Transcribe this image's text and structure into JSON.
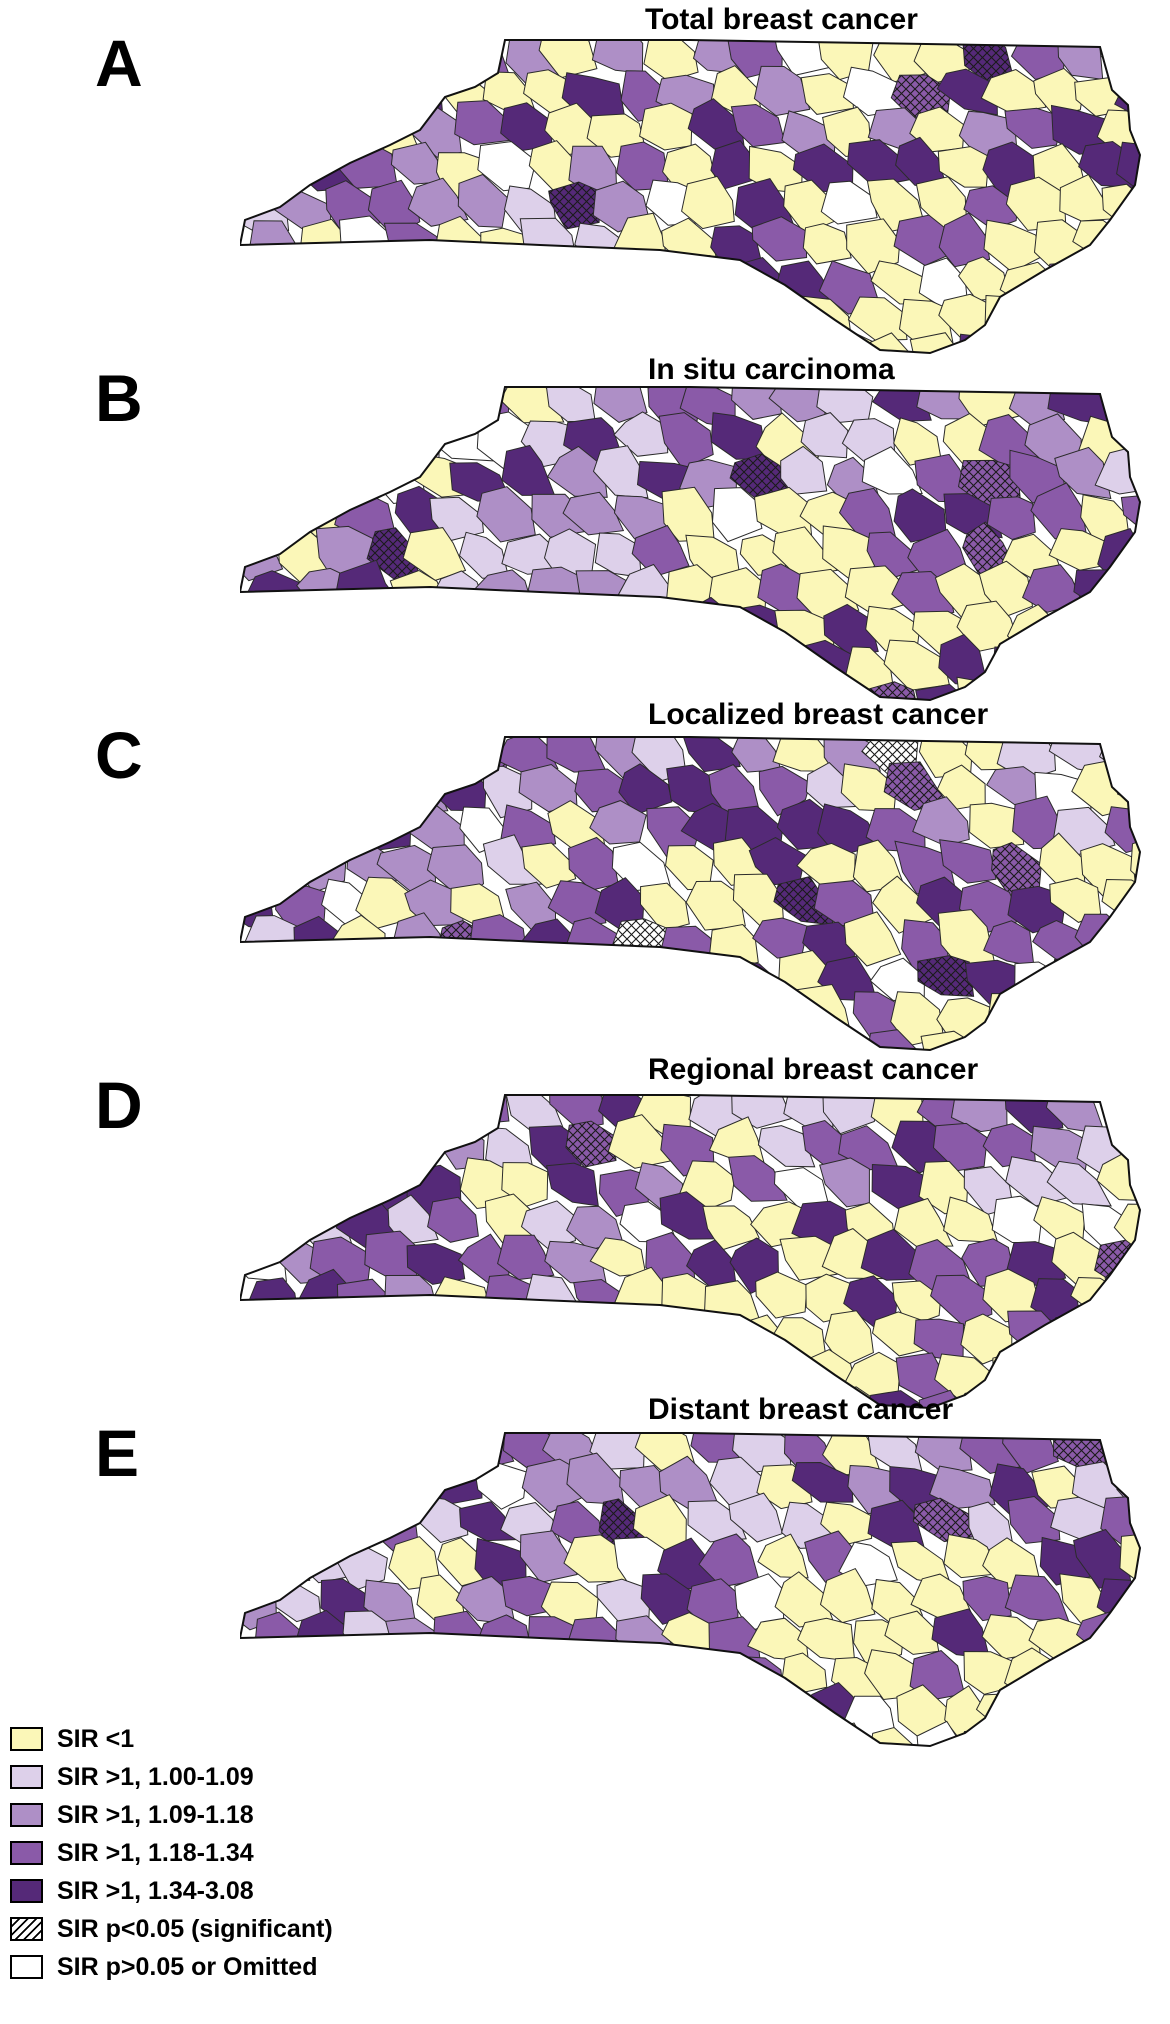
{
  "panels": [
    {
      "letter": "A",
      "title": "Total breast cancer"
    },
    {
      "letter": "B",
      "title": "In situ carcinoma"
    },
    {
      "letter": "C",
      "title": "Localized breast cancer"
    },
    {
      "letter": "D",
      "title": "Regional breast cancer"
    },
    {
      "letter": "E",
      "title": "Distant breast cancer"
    }
  ],
  "legend": [
    {
      "label": "SIR <1",
      "color": "#fbf7b8"
    },
    {
      "label": "SIR >1, 1.00-1.09",
      "color": "#ddd0ea"
    },
    {
      "label": "SIR >1, 1.09-1.18",
      "color": "#ae8fc6"
    },
    {
      "label": "SIR >1, 1.18-1.34",
      "color": "#8a5aa8"
    },
    {
      "label": "SIR >1, 1.34-3.08",
      "color": "#552978"
    },
    {
      "label": "SIR p<0.05 (significant)",
      "color": "hatch"
    },
    {
      "label": "SIR p>0.05 or Omitted",
      "color": "#ffffff"
    }
  ]
}
